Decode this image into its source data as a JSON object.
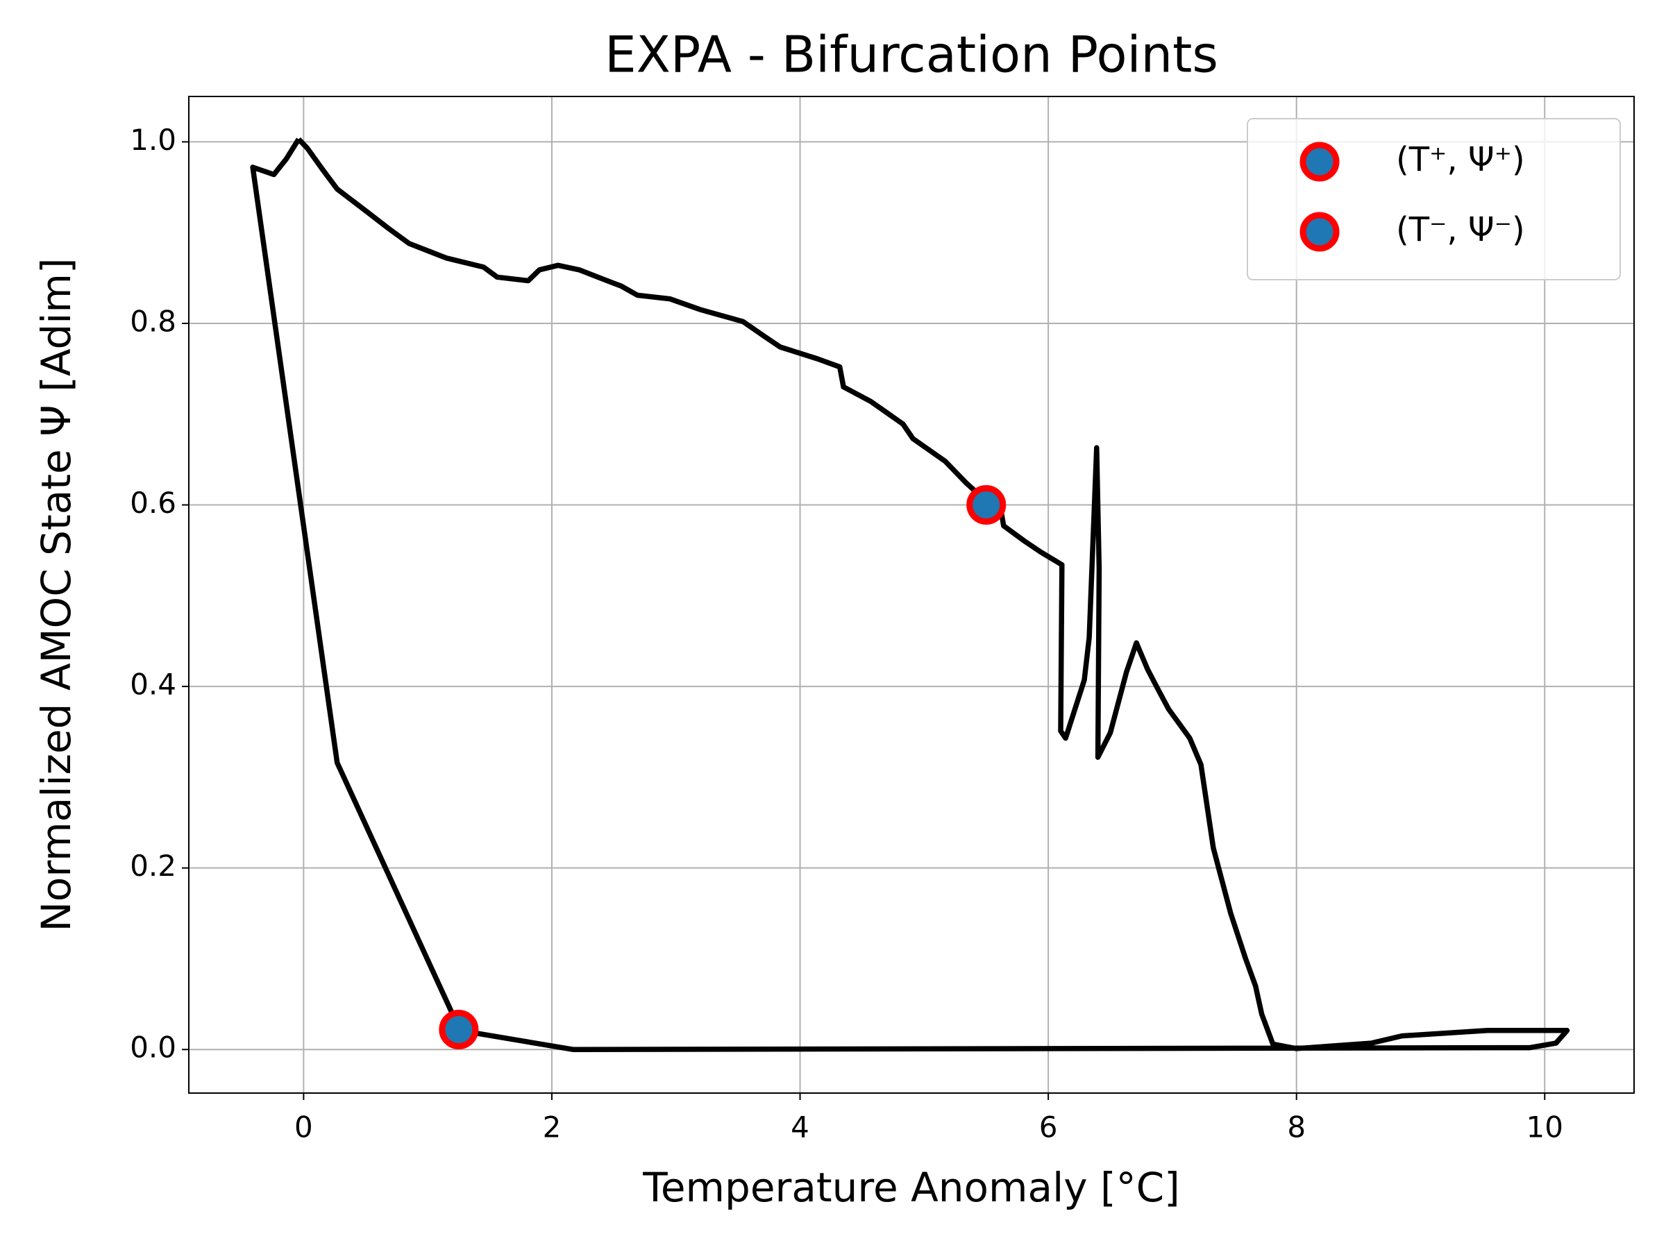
{
  "chart_data": {
    "type": "line",
    "title": "EXPA - Bifurcation Points",
    "x_label": "Temperature Anomaly [°C]",
    "y_label": "Normalized AMOC State Ψ [Adim]",
    "xlim": [
      -0.925,
      10.72
    ],
    "ylim": [
      -0.048,
      1.05
    ],
    "xticks": [
      0,
      2,
      4,
      6,
      8,
      10
    ],
    "yticks": [
      {
        "value": 0,
        "label": "0.0"
      },
      {
        "value": 0.2,
        "label": "0.2"
      },
      {
        "value": 0.4,
        "label": "0.4"
      },
      {
        "value": 0.6,
        "label": "0.6"
      },
      {
        "value": 0.8,
        "label": "0.8"
      },
      {
        "value": 1,
        "label": "1.0"
      }
    ],
    "grid": true,
    "legend": "upper right",
    "series": [
      {
        "type": "line",
        "color": "#000000",
        "x": [
          -0.04,
          0.03,
          0.15,
          0.27,
          0.51,
          0.68,
          0.85,
          1.15,
          1.45,
          1.56,
          1.81,
          1.9,
          2.05,
          2.22,
          2.39,
          2.56,
          2.69,
          2.95,
          3.2,
          3.54,
          3.72,
          3.84,
          4.14,
          4.32,
          4.35,
          4.57,
          4.83,
          4.91,
          5.17,
          5.34,
          5.51,
          5.62,
          5.64,
          5.81,
          5.94,
          6.11,
          6.1,
          6.14,
          6.29,
          6.33,
          6.39,
          6.41,
          6.4,
          6.5,
          6.63,
          6.71,
          6.8,
          6.88,
          6.97,
          7.14,
          7.23,
          7.33,
          7.47,
          7.59,
          7.67,
          7.72,
          7.81,
          8.0,
          8.6,
          8.85,
          9.54,
          10.18,
          10.09,
          9.88,
          6.11,
          2.17,
          1.26,
          0.27,
          -0.41,
          -0.24,
          -0.14,
          -0.04
        ],
        "values": [
          1.003,
          0.993,
          0.97,
          0.948,
          0.923,
          0.905,
          0.888,
          0.872,
          0.862,
          0.851,
          0.847,
          0.859,
          0.864,
          0.859,
          0.85,
          0.841,
          0.831,
          0.827,
          0.815,
          0.802,
          0.785,
          0.774,
          0.761,
          0.752,
          0.73,
          0.714,
          0.689,
          0.673,
          0.648,
          0.624,
          0.603,
          0.593,
          0.577,
          0.56,
          0.548,
          0.534,
          0.351,
          0.343,
          0.407,
          0.454,
          0.663,
          0.53,
          0.322,
          0.349,
          0.416,
          0.448,
          0.419,
          0.398,
          0.375,
          0.343,
          0.314,
          0.222,
          0.15,
          0.1,
          0.07,
          0.039,
          0.006,
          0.001,
          0.007,
          0.015,
          0.021,
          0.021,
          0.007,
          0.002,
          0.001,
          0.0,
          0.021,
          0.316,
          0.972,
          0.964,
          0.981,
          1.003
        ]
      },
      {
        "type": "scatter",
        "name": "(T⁺, Ψ⁺)",
        "color": "#1f77b4",
        "edgecolor": "#ff0000",
        "x": [
          5.5
        ],
        "values": [
          0.6
        ]
      },
      {
        "type": "scatter",
        "name": "(T⁻, Ψ⁻)",
        "color": "#1f77b4",
        "edgecolor": "#ff0000",
        "x": [
          1.25
        ],
        "values": [
          0.022
        ]
      }
    ]
  }
}
